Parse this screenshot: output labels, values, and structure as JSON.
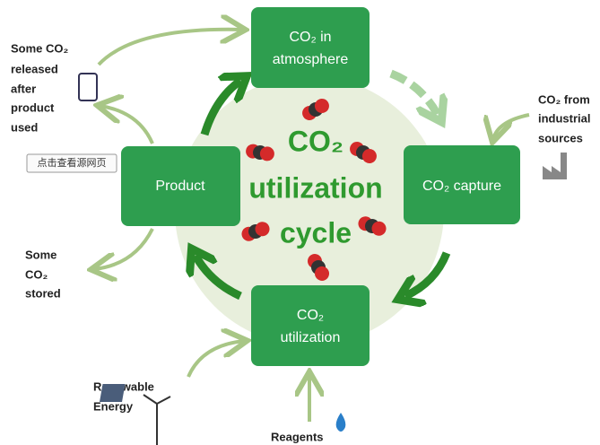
{
  "center": {
    "lines": [
      "CO₂",
      "utilization",
      "cycle"
    ]
  },
  "nodes": [
    {
      "lines": [
        "CO₂ in",
        "atmosphere"
      ]
    },
    {
      "lines": [
        "CO₂ capture"
      ]
    },
    {
      "lines": [
        "CO₂",
        "utilization"
      ]
    },
    {
      "lines": [
        "Product"
      ]
    }
  ],
  "labels": [
    {
      "lines": [
        "Some CO₂",
        "released",
        "after",
        "product",
        "used"
      ]
    },
    {
      "lines": [
        "CO₂ from",
        "industrial",
        "sources"
      ]
    },
    {
      "lines": [
        "Some",
        "CO₂",
        "stored"
      ]
    },
    {
      "lines": [
        "Renewable",
        "Energy"
      ]
    },
    {
      "lines": [
        "Reagents"
      ]
    }
  ],
  "button": "点击查看源网页"
}
